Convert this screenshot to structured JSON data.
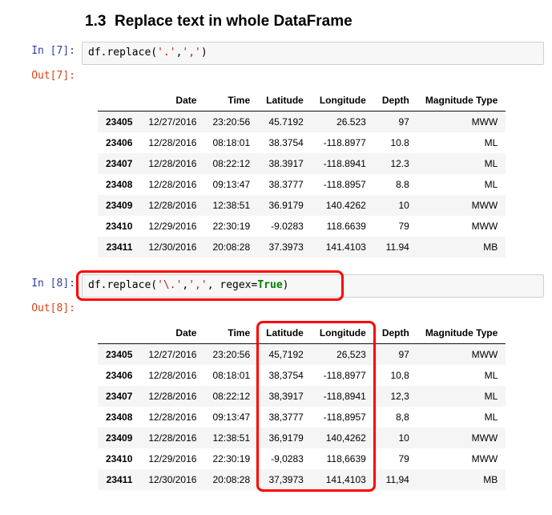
{
  "heading_prefix": "1.3",
  "heading_text": "Replace text in whole DataFrame",
  "cell1": {
    "in_prompt": "In [7]:",
    "out_prompt": "Out[7]:",
    "code_prefix": "df.replace(",
    "code_arg1": "'.'",
    "code_sep": ",",
    "code_arg2": "','",
    "code_suffix": ")"
  },
  "cell2": {
    "in_prompt": "In [8]:",
    "out_prompt": "Out[8]:",
    "code_prefix": "df.replace(",
    "code_arg1": "'\\.'",
    "code_sep1": ",",
    "code_arg2": "','",
    "code_sep2": ", regex=",
    "code_kw": "True",
    "code_suffix": ")"
  },
  "columns": [
    "Date",
    "Time",
    "Latitude",
    "Longitude",
    "Depth",
    "Magnitude Type"
  ],
  "index": [
    "23405",
    "23406",
    "23407",
    "23408",
    "23409",
    "23410",
    "23411"
  ],
  "table1_rows": [
    [
      "12/27/2016",
      "23:20:56",
      "45.7192",
      "26.523",
      "97",
      "MWW"
    ],
    [
      "12/28/2016",
      "08:18:01",
      "38.3754",
      "-118.8977",
      "10.8",
      "ML"
    ],
    [
      "12/28/2016",
      "08:22:12",
      "38.3917",
      "-118.8941",
      "12.3",
      "ML"
    ],
    [
      "12/28/2016",
      "09:13:47",
      "38.3777",
      "-118.8957",
      "8.8",
      "ML"
    ],
    [
      "12/28/2016",
      "12:38:51",
      "36.9179",
      "140.4262",
      "10",
      "MWW"
    ],
    [
      "12/29/2016",
      "22:30:19",
      "-9.0283",
      "118.6639",
      "79",
      "MWW"
    ],
    [
      "12/30/2016",
      "20:08:28",
      "37.3973",
      "141.4103",
      "11.94",
      "MB"
    ]
  ],
  "table2_rows": [
    [
      "12/27/2016",
      "23:20:56",
      "45,7192",
      "26,523",
      "97",
      "MWW"
    ],
    [
      "12/28/2016",
      "08:18:01",
      "38,3754",
      "-118,8977",
      "10,8",
      "ML"
    ],
    [
      "12/28/2016",
      "08:22:12",
      "38,3917",
      "-118,8941",
      "12,3",
      "ML"
    ],
    [
      "12/28/2016",
      "09:13:47",
      "38,3777",
      "-118,8957",
      "8,8",
      "ML"
    ],
    [
      "12/28/2016",
      "12:38:51",
      "36,9179",
      "140,4262",
      "10",
      "MWW"
    ],
    [
      "12/29/2016",
      "22:30:19",
      "-9,0283",
      "118,6639",
      "79",
      "MWW"
    ],
    [
      "12/30/2016",
      "20:08:28",
      "37,3973",
      "141,4103",
      "11,94",
      "MB"
    ]
  ],
  "highlights": {
    "code_box": {
      "border_color": "#ff0000",
      "border_radius": 8,
      "border_width": 3
    },
    "table2_col_box": {
      "col_start": 2,
      "col_end": 3
    }
  }
}
